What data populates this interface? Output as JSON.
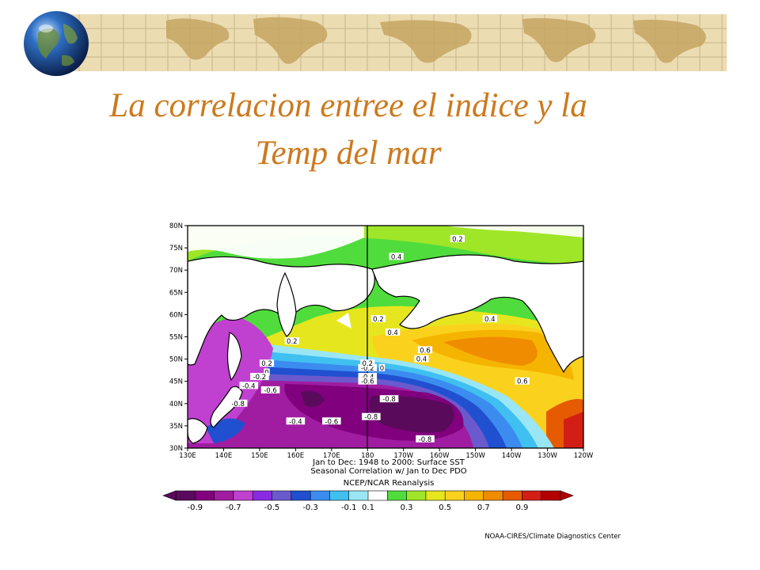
{
  "slide": {
    "title_line1": "La correlacion entree el indice y la",
    "title_line2": "Temp del mar"
  },
  "chart_data": {
    "type": "heatmap",
    "subtitle_line1": "Jan to Dec: 1948 to 2000: Surface SST",
    "subtitle_line2": "Seasonal Correlation w/ Jan to Dec PDO",
    "source": "NCEP/NCAR Reanalysis",
    "credit": "NOAA-CIRES/Climate Diagnostics Center",
    "x_ticks": [
      "130E",
      "140E",
      "150E",
      "160E",
      "170E",
      "180",
      "170W",
      "160W",
      "150W",
      "140W",
      "130W",
      "120W"
    ],
    "y_ticks": [
      "80N",
      "75N",
      "70N",
      "65N",
      "60N",
      "55N",
      "50N",
      "45N",
      "40N",
      "35N",
      "30N"
    ],
    "xlim_lon": [
      130,
      240
    ],
    "ylim_lat": [
      30,
      80
    ],
    "colorbar": {
      "labels": [
        "-0.9",
        "-0.7",
        "-0.5",
        "-0.3",
        "-0.1",
        "0.1",
        "0.3",
        "0.5",
        "0.7",
        "0.9"
      ],
      "bins": [
        -1.0,
        -0.9,
        -0.8,
        -0.7,
        -0.6,
        -0.5,
        -0.4,
        -0.3,
        -0.2,
        -0.1,
        0.1,
        0.2,
        0.3,
        0.4,
        0.5,
        0.6,
        0.7,
        0.8,
        0.9,
        1.0
      ],
      "colors": [
        "#5a0a5a",
        "#80007d",
        "#a01ca0",
        "#c040d0",
        "#8a2be2",
        "#6a5acd",
        "#2050d0",
        "#3c8cf0",
        "#40c0f0",
        "#9ae6f5",
        "#ffffff",
        "#50dc3c",
        "#a0e628",
        "#e6e61e",
        "#fad21e",
        "#f5b400",
        "#f08c00",
        "#e65a00",
        "#d21e14",
        "#b40000"
      ]
    },
    "contour_labels": [
      {
        "text": "0.2",
        "lon": 205,
        "lat": 77
      },
      {
        "text": "0.4",
        "lon": 188,
        "lat": 73
      },
      {
        "text": "0.2",
        "lon": 183,
        "lat": 59
      },
      {
        "text": "0.4",
        "lon": 187,
        "lat": 56
      },
      {
        "text": "0.4",
        "lon": 214,
        "lat": 59
      },
      {
        "text": "0.6",
        "lon": 196,
        "lat": 52
      },
      {
        "text": "0.4",
        "lon": 195,
        "lat": 50
      },
      {
        "text": "0.2",
        "lon": 159,
        "lat": 54
      },
      {
        "text": "0.6",
        "lon": 223,
        "lat": 45
      },
      {
        "text": "0.2",
        "lon": 152,
        "lat": 49
      },
      {
        "text": "0",
        "lon": 152,
        "lat": 47
      },
      {
        "text": "-0.2",
        "lon": 150,
        "lat": 46
      },
      {
        "text": "-0.4",
        "lon": 147,
        "lat": 44
      },
      {
        "text": "-0.6",
        "lon": 153,
        "lat": 43
      },
      {
        "text": "-0.2",
        "lon": 180,
        "lat": 48
      },
      {
        "text": "-0.4",
        "lon": 180,
        "lat": 46
      },
      {
        "text": "-0.6",
        "lon": 180,
        "lat": 45
      },
      {
        "text": "0.2",
        "lon": 180,
        "lat": 49
      },
      {
        "text": "0",
        "lon": 184,
        "lat": 48
      },
      {
        "text": "-0.8",
        "lon": 186,
        "lat": 41
      },
      {
        "text": "-0.8",
        "lon": 181,
        "lat": 37
      },
      {
        "text": "-0.6",
        "lon": 170,
        "lat": 36
      },
      {
        "text": "-0.4",
        "lon": 160,
        "lat": 36
      },
      {
        "text": "-0.8",
        "lon": 144,
        "lat": 40
      },
      {
        "text": "-0.8",
        "lon": 196,
        "lat": 32
      }
    ]
  }
}
